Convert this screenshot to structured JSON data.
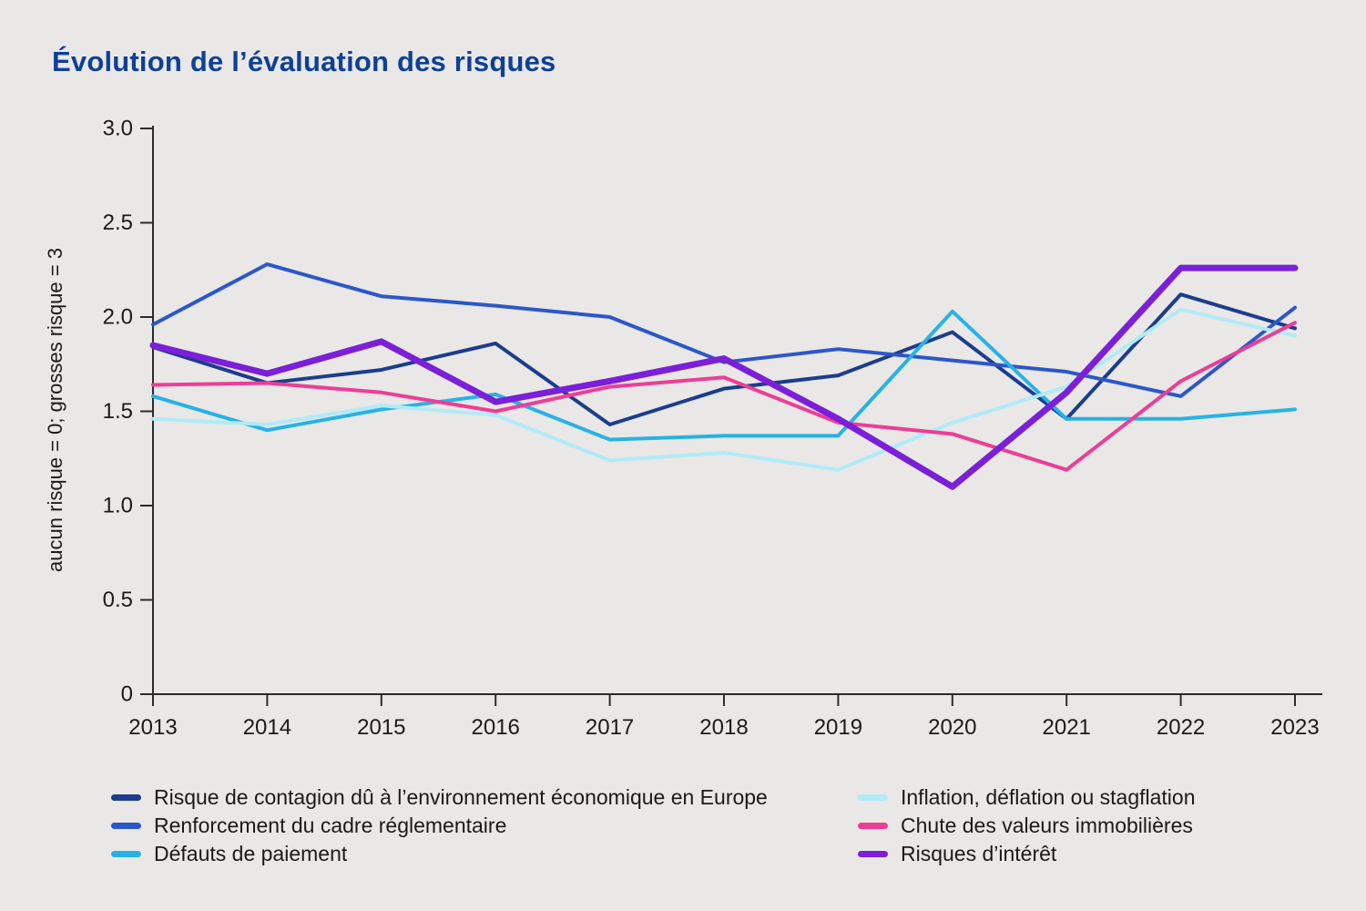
{
  "page": {
    "background": "#e9e8e6",
    "title_color": "#0e4096",
    "text_color": "#1a1a1a",
    "axis_color": "#2b2b2b"
  },
  "chart_data": {
    "type": "line",
    "title": "Évolution de l’évaluation des risques",
    "xlabel": "",
    "ylabel": "aucun risque = 0; grosses risque = 3",
    "x": [
      2013,
      2014,
      2015,
      2016,
      2017,
      2018,
      2019,
      2020,
      2021,
      2022,
      2023
    ],
    "ylim": [
      0,
      3
    ],
    "y_tick_labels": [
      "0",
      "0.5",
      "1.0",
      "1.5",
      "2.0",
      "2.5",
      "3.0"
    ],
    "grid": false,
    "legend_position": "bottom-two-columns",
    "series": [
      {
        "name": "Risque de contagion dû à l’environnement économique en Europe",
        "color": "#1b3d8c",
        "line_width": 4,
        "values": [
          1.84,
          1.65,
          1.72,
          1.86,
          1.43,
          1.62,
          1.69,
          1.92,
          1.46,
          2.12,
          1.94
        ]
      },
      {
        "name": "Renforcement du cadre réglementaire",
        "color": "#2c57cb",
        "line_width": 4,
        "values": [
          1.96,
          2.28,
          2.11,
          2.06,
          2.0,
          1.76,
          1.83,
          1.77,
          1.71,
          1.58,
          2.05
        ]
      },
      {
        "name": "Défauts de paiement",
        "color": "#27b2e7",
        "line_width": 4,
        "values": [
          1.58,
          1.4,
          1.51,
          1.59,
          1.35,
          1.37,
          1.37,
          2.03,
          1.46,
          1.46,
          1.51
        ]
      },
      {
        "name": "Inflation, déflation ou stagflation",
        "color": "#b0ebf8",
        "line_width": 4,
        "values": [
          1.46,
          1.43,
          1.53,
          1.48,
          1.24,
          1.28,
          1.19,
          1.44,
          1.63,
          2.04,
          1.9
        ]
      },
      {
        "name": "Chute des valeurs immobilières",
        "color": "#ee3d96",
        "line_width": 4,
        "values": [
          1.64,
          1.65,
          1.6,
          1.5,
          1.63,
          1.68,
          1.44,
          1.38,
          1.19,
          1.66,
          1.97
        ]
      },
      {
        "name": "Risques d’intérêt",
        "color": "#7b1fd8",
        "line_width": 7,
        "values": [
          1.85,
          1.7,
          1.87,
          1.55,
          1.66,
          1.78,
          1.46,
          1.1,
          1.6,
          2.26,
          2.26
        ]
      }
    ]
  }
}
